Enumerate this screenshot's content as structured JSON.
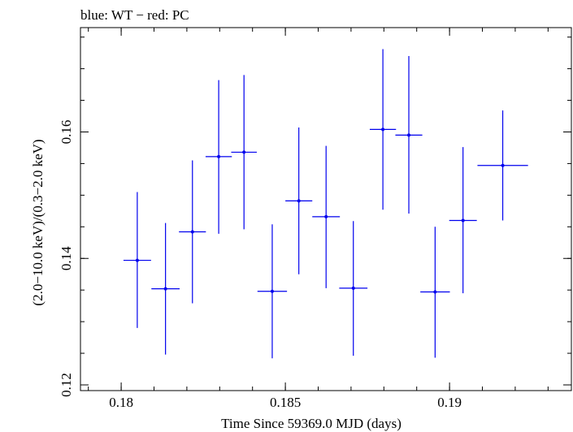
{
  "chart_data": {
    "type": "scatter",
    "title": "blue: WT − red: PC",
    "xlabel": "Time Since 59369.0 MJD (days)",
    "ylabel": "(2.0−10.0 keV)/(0.3−2.0 keV)",
    "xlim": [
      0.17876,
      0.19371
    ],
    "ylim": [
      0.1191,
      0.1765
    ],
    "x_ticks": [
      {
        "value": 0.18,
        "label": "0.18"
      },
      {
        "value": 0.185,
        "label": "0.185"
      },
      {
        "value": 0.19,
        "label": "0.19"
      }
    ],
    "y_ticks": [
      {
        "value": 0.12,
        "label": "0.12"
      },
      {
        "value": 0.14,
        "label": "0.14"
      },
      {
        "value": 0.16,
        "label": "0.16"
      }
    ],
    "x_minor_step": 0.001,
    "y_minor_step": 0.005,
    "grid": false,
    "series": [
      {
        "name": "WT",
        "color": "#0000ee",
        "points": [
          {
            "x": 0.18049,
            "xerr": 0.00042,
            "y": 0.1397,
            "ylo": 0.129,
            "yhi": 0.1505
          },
          {
            "x": 0.18135,
            "xerr": 0.00043,
            "y": 0.1352,
            "ylo": 0.1248,
            "yhi": 0.1456
          },
          {
            "x": 0.18217,
            "xerr": 0.00041,
            "y": 0.1442,
            "ylo": 0.1329,
            "yhi": 0.1555
          },
          {
            "x": 0.18297,
            "xerr": 0.0004,
            "y": 0.1561,
            "ylo": 0.1439,
            "yhi": 0.1682
          },
          {
            "x": 0.18374,
            "xerr": 0.00039,
            "y": 0.1568,
            "ylo": 0.1446,
            "yhi": 0.169
          },
          {
            "x": 0.1846,
            "xerr": 0.00045,
            "y": 0.1348,
            "ylo": 0.1242,
            "yhi": 0.1454
          },
          {
            "x": 0.18541,
            "xerr": 0.00041,
            "y": 0.1491,
            "ylo": 0.1375,
            "yhi": 0.1607
          },
          {
            "x": 0.18624,
            "xerr": 0.00042,
            "y": 0.1466,
            "ylo": 0.1353,
            "yhi": 0.1578
          },
          {
            "x": 0.18707,
            "xerr": 0.00043,
            "y": 0.1353,
            "ylo": 0.1246,
            "yhi": 0.1459
          },
          {
            "x": 0.18797,
            "xerr": 0.0004,
            "y": 0.1604,
            "ylo": 0.1477,
            "yhi": 0.1731
          },
          {
            "x": 0.18876,
            "xerr": 0.00041,
            "y": 0.1595,
            "ylo": 0.1471,
            "yhi": 0.172
          },
          {
            "x": 0.18956,
            "xerr": 0.00045,
            "y": 0.1347,
            "ylo": 0.1243,
            "yhi": 0.145
          },
          {
            "x": 0.19041,
            "xerr": 0.00042,
            "y": 0.146,
            "ylo": 0.1345,
            "yhi": 0.1576
          },
          {
            "x": 0.19162,
            "xerr": 0.00077,
            "y": 0.1547,
            "ylo": 0.146,
            "yhi": 0.1634
          }
        ]
      }
    ]
  }
}
